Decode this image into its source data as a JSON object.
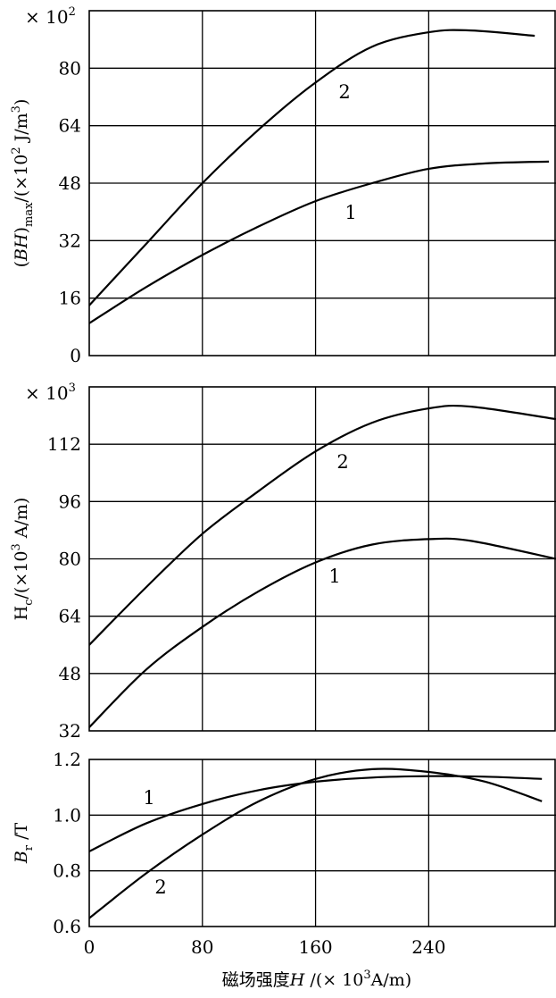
{
  "chart_data": [
    {
      "type": "line",
      "multiplier_label": "× 10",
      "multiplier_exp": "2",
      "ylabel_parts": [
        "(",
        "BH",
        ")",
        "max",
        "/(×10",
        "2",
        " J/m",
        "3",
        ")"
      ],
      "ylim": [
        0,
        96
      ],
      "xlim": [
        0,
        330
      ],
      "yticks": [
        0,
        16,
        32,
        48,
        64,
        80
      ],
      "xticks": [
        80,
        160,
        240
      ],
      "grid": true,
      "series": [
        {
          "name": "2",
          "x": [
            0,
            40,
            80,
            120,
            160,
            200,
            240,
            270,
            315
          ],
          "y": [
            14,
            31,
            48,
            63,
            76,
            86,
            90,
            90.5,
            89
          ]
        },
        {
          "name": "1",
          "x": [
            0,
            40,
            80,
            120,
            160,
            200,
            240,
            280,
            325
          ],
          "y": [
            9,
            19,
            28,
            36,
            43,
            48,
            52,
            53.5,
            54
          ]
        }
      ]
    },
    {
      "type": "line",
      "multiplier_label": "× 10",
      "multiplier_exp": "3",
      "ylabel_parts": [
        "H",
        "c",
        "/(×10",
        "3",
        " A/m)"
      ],
      "ylim": [
        32,
        128
      ],
      "xlim": [
        0,
        330
      ],
      "yticks": [
        32,
        48,
        64,
        80,
        96,
        112
      ],
      "xticks": [
        80,
        160,
        240
      ],
      "grid": true,
      "series": [
        {
          "name": "2",
          "x": [
            0,
            40,
            80,
            120,
            160,
            200,
            240,
            270,
            330
          ],
          "y": [
            56,
            72,
            87,
            99,
            110,
            118,
            122,
            122.5,
            119
          ]
        },
        {
          "name": "1",
          "x": [
            0,
            40,
            80,
            120,
            160,
            200,
            240,
            270,
            330
          ],
          "y": [
            33,
            49,
            61,
            71,
            79,
            84,
            85.5,
            85,
            80
          ]
        }
      ]
    },
    {
      "type": "line",
      "ylabel_parts": [
        "B",
        "r",
        " /T"
      ],
      "ylim": [
        0.6,
        1.2
      ],
      "xlim": [
        0,
        330
      ],
      "yticks": [
        0.6,
        0.8,
        1.0,
        1.2
      ],
      "ytick_labels": [
        "0.6",
        "0.8",
        "1.0",
        "1.2"
      ],
      "xticks": [
        0,
        80,
        160,
        240
      ],
      "xtick_labels": [
        "0",
        "80",
        "160",
        "240"
      ],
      "xlabel": "磁场强度",
      "xlabel_var": "H",
      "xlabel_unit_a": "/(× 10",
      "xlabel_unit_exp": "3",
      "xlabel_unit_b": "A/m)",
      "grid": true,
      "series": [
        {
          "name": "1",
          "x": [
            0,
            40,
            80,
            120,
            160,
            200,
            240,
            280,
            320
          ],
          "y": [
            0.87,
            0.97,
            1.04,
            1.09,
            1.12,
            1.135,
            1.14,
            1.138,
            1.13
          ]
        },
        {
          "name": "2",
          "x": [
            0,
            40,
            80,
            120,
            160,
            200,
            240,
            280,
            320
          ],
          "y": [
            0.63,
            0.79,
            0.93,
            1.05,
            1.13,
            1.165,
            1.155,
            1.12,
            1.05
          ]
        }
      ]
    }
  ]
}
